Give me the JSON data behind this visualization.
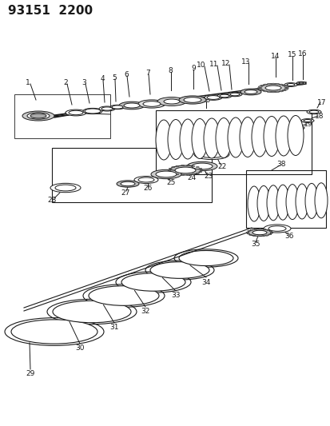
{
  "title": "93151  2200",
  "bg_color": "#ffffff",
  "line_color": "#1a1a1a",
  "title_fontsize": 11,
  "label_fontsize": 6.5,
  "fig_width": 4.14,
  "fig_height": 5.33,
  "dpi": 100
}
